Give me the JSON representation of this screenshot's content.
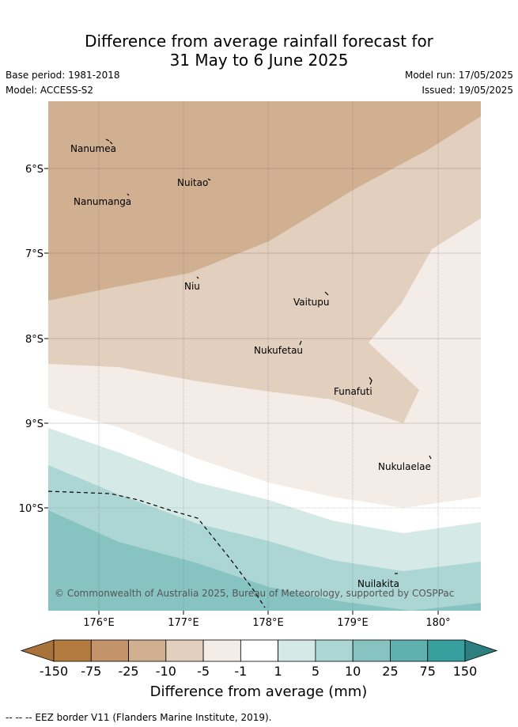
{
  "title_line1": "Difference from average rainfall forecast for",
  "title_line2": "31 May to 6 June 2025",
  "base_period": "Base period: 1981-2018",
  "model": "Model: ACCESS-S2",
  "model_run": "Model run: 17/05/2025",
  "issued": "Issued: 19/05/2025",
  "copyright": "© Commonwealth of Australia 2025, Bureau of Meteorology, supported by COSPPac",
  "footnote": "-- -- -- EEZ border V11 (Flanders Marine Institute, 2019).",
  "colorbar_title": "Difference from average (mm)",
  "x_ticks": [
    "176°E",
    "177°E",
    "178°E",
    "179°E",
    "180°"
  ],
  "y_ticks": [
    "6°S",
    "7°S",
    "8°S",
    "9°S",
    "10°S"
  ],
  "places": [
    {
      "name": "Nanumea"
    },
    {
      "name": "Nuitao"
    },
    {
      "name": "Nanumanga"
    },
    {
      "name": "Niu"
    },
    {
      "name": "Vaitupu"
    },
    {
      "name": "Nukufetau"
    },
    {
      "name": "Funafuti"
    },
    {
      "name": "Nukulaelae"
    },
    {
      "name": "Nuilakita"
    }
  ],
  "colorbar": {
    "labels": [
      "-150",
      "-75",
      "-25",
      "-10",
      "-5",
      "-1",
      "1",
      "5",
      "10",
      "25",
      "75",
      "150"
    ],
    "colors": [
      "#a8723a",
      "#b47b40",
      "#c39469",
      "#d1b092",
      "#e2cfbd",
      "#f4ece6",
      "#ffffff",
      "#d5e9e7",
      "#acd6d4",
      "#86c3c1",
      "#5fb0ae",
      "#379f9d",
      "#2c7f7e"
    ]
  }
}
